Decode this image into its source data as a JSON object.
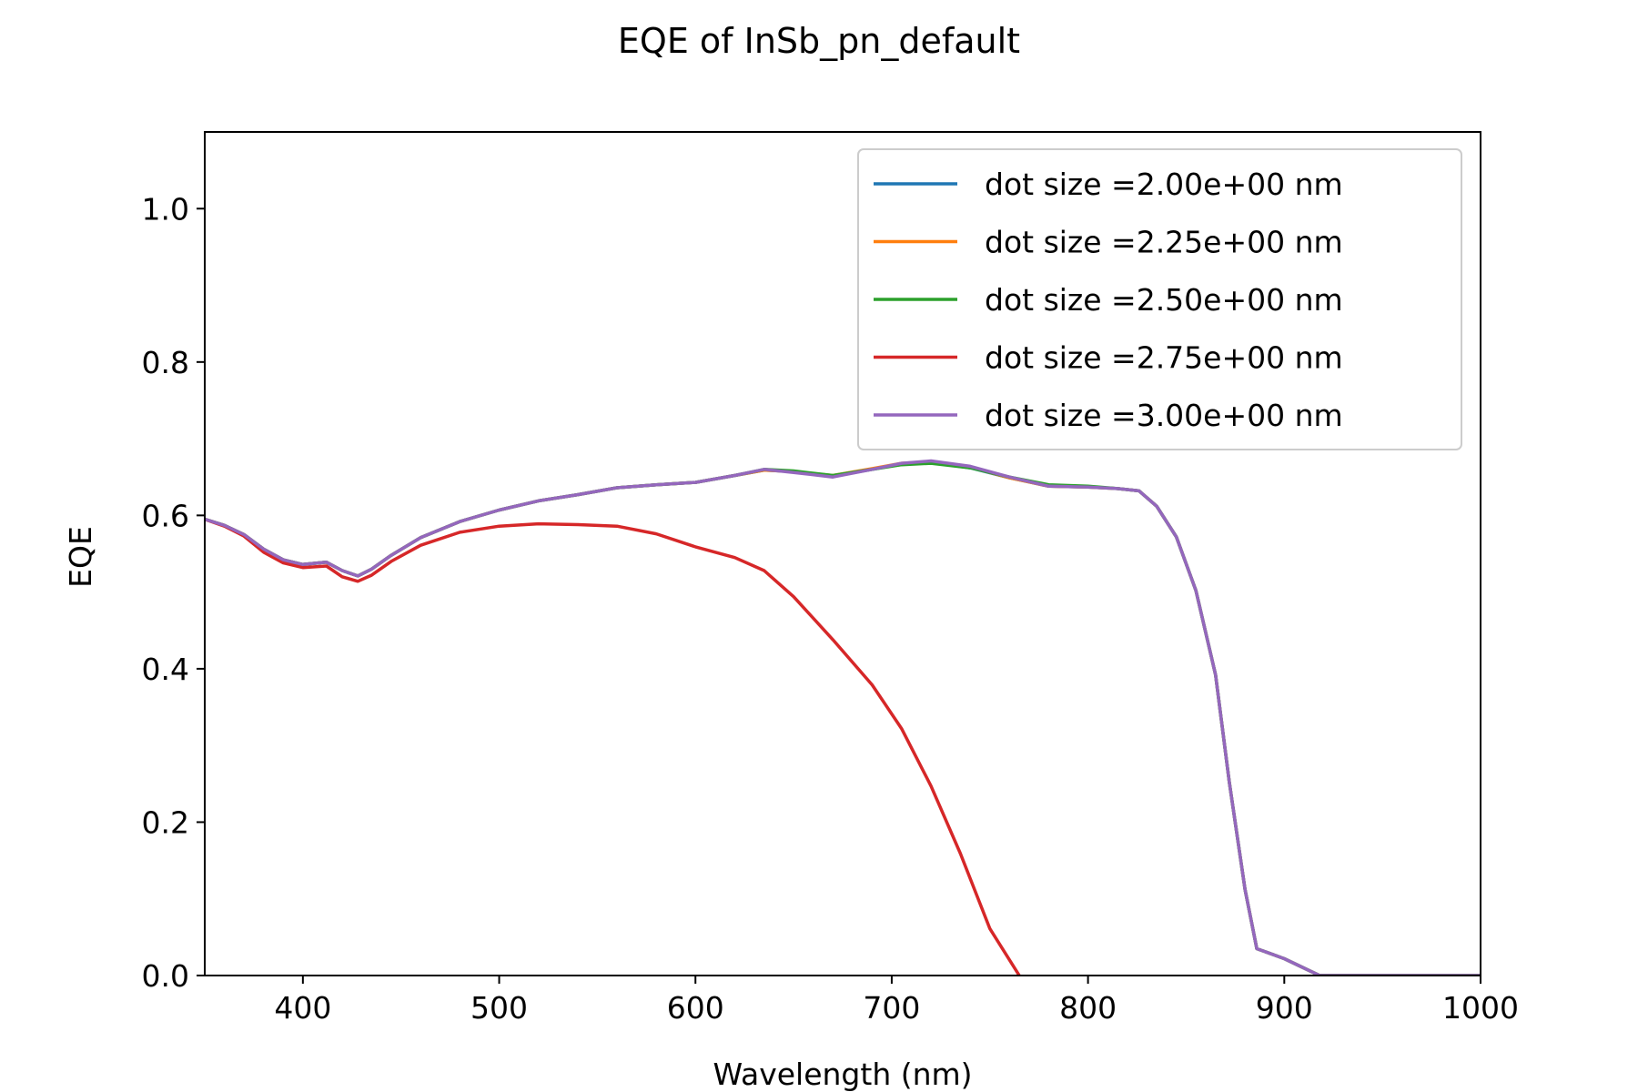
{
  "chart_data": {
    "type": "line",
    "title": "EQE of  InSb_pn_default",
    "xlabel": "Wavelength (nm)",
    "ylabel": "EQE",
    "xlim": [
      350,
      1000
    ],
    "ylim": [
      0,
      1.1
    ],
    "xticks": [
      400,
      500,
      600,
      700,
      800,
      900,
      1000
    ],
    "yticks": [
      0.0,
      0.2,
      0.4,
      0.6,
      0.8,
      1.0
    ],
    "xtick_labels": [
      "400",
      "500",
      "600",
      "700",
      "800",
      "900",
      "1000"
    ],
    "ytick_labels": [
      "0.0",
      "0.2",
      "0.4",
      "0.6",
      "0.8",
      "1.0"
    ],
    "grid": false,
    "legend_position": "top-right",
    "series": [
      {
        "name": "dot size =2.00e+00 nm",
        "color": "#1f77b4",
        "x": [
          350,
          360,
          370,
          380,
          390,
          400,
          412,
          420,
          428,
          435,
          445,
          460,
          480,
          500,
          520,
          540,
          560,
          580,
          600,
          620,
          635,
          650,
          670,
          690,
          705,
          720,
          740,
          760,
          780,
          800,
          815,
          826,
          835,
          845,
          855,
          865,
          872,
          880,
          886,
          900,
          918,
          940,
          960,
          980,
          1000
        ],
        "y": [
          0.595,
          0.587,
          0.575,
          0.556,
          0.542,
          0.536,
          0.539,
          0.528,
          0.521,
          0.53,
          0.548,
          0.571,
          0.592,
          0.607,
          0.619,
          0.627,
          0.636,
          0.64,
          0.643,
          0.652,
          0.659,
          0.657,
          0.651,
          0.66,
          0.667,
          0.669,
          0.662,
          0.649,
          0.638,
          0.637,
          0.635,
          0.632,
          0.612,
          0.572,
          0.502,
          0.392,
          0.252,
          0.112,
          0.035,
          0.022,
          0.0,
          0.0,
          0.0,
          0.0,
          0.0
        ]
      },
      {
        "name": "dot size =2.25e+00 nm",
        "color": "#ff7f0e",
        "x": [
          350,
          360,
          370,
          380,
          390,
          400,
          412,
          420,
          428,
          435,
          445,
          460,
          480,
          500,
          520,
          540,
          560,
          580,
          600,
          620,
          635,
          650,
          670,
          690,
          705,
          720,
          740,
          760,
          780,
          800,
          815,
          826,
          835,
          845,
          855,
          865,
          872,
          880,
          886,
          900,
          918,
          940,
          960,
          980,
          1000
        ],
        "y": [
          0.595,
          0.587,
          0.575,
          0.556,
          0.542,
          0.536,
          0.539,
          0.528,
          0.521,
          0.53,
          0.548,
          0.571,
          0.592,
          0.607,
          0.619,
          0.627,
          0.636,
          0.64,
          0.643,
          0.652,
          0.659,
          0.657,
          0.652,
          0.661,
          0.668,
          0.67,
          0.663,
          0.649,
          0.638,
          0.637,
          0.635,
          0.632,
          0.612,
          0.572,
          0.502,
          0.392,
          0.252,
          0.112,
          0.035,
          0.022,
          0.0,
          0.0,
          0.0,
          0.0,
          0.0
        ]
      },
      {
        "name": "dot size =2.50e+00 nm",
        "color": "#2ca02c",
        "x": [
          350,
          360,
          370,
          380,
          390,
          400,
          412,
          420,
          428,
          435,
          445,
          460,
          480,
          500,
          520,
          540,
          560,
          580,
          600,
          620,
          635,
          650,
          670,
          690,
          705,
          720,
          740,
          760,
          780,
          800,
          815,
          826,
          835,
          845,
          855,
          865,
          872,
          880,
          886,
          900,
          918,
          940,
          960,
          980,
          1000
        ],
        "y": [
          0.595,
          0.587,
          0.575,
          0.556,
          0.542,
          0.536,
          0.539,
          0.528,
          0.521,
          0.53,
          0.548,
          0.571,
          0.592,
          0.607,
          0.619,
          0.627,
          0.636,
          0.64,
          0.643,
          0.652,
          0.66,
          0.658,
          0.652,
          0.66,
          0.666,
          0.668,
          0.662,
          0.65,
          0.64,
          0.638,
          0.635,
          0.632,
          0.612,
          0.572,
          0.502,
          0.392,
          0.252,
          0.112,
          0.035,
          0.022,
          0.0,
          0.0,
          0.0,
          0.0,
          0.0
        ]
      },
      {
        "name": "dot size =2.75e+00 nm",
        "color": "#d62728",
        "x": [
          350,
          360,
          370,
          380,
          390,
          400,
          412,
          420,
          428,
          435,
          445,
          460,
          480,
          500,
          520,
          540,
          560,
          580,
          600,
          620,
          635,
          650,
          670,
          690,
          705,
          720,
          735,
          750,
          765
        ],
        "y": [
          0.595,
          0.586,
          0.573,
          0.552,
          0.538,
          0.532,
          0.534,
          0.52,
          0.514,
          0.522,
          0.54,
          0.561,
          0.578,
          0.586,
          0.589,
          0.588,
          0.586,
          0.576,
          0.559,
          0.545,
          0.528,
          0.494,
          0.438,
          0.379,
          0.322,
          0.247,
          0.159,
          0.061,
          0.0
        ]
      },
      {
        "name": "dot size =3.00e+00 nm",
        "color": "#9467bd",
        "x": [
          350,
          360,
          370,
          380,
          390,
          400,
          412,
          420,
          428,
          435,
          445,
          460,
          480,
          500,
          520,
          540,
          560,
          580,
          600,
          620,
          635,
          650,
          670,
          690,
          705,
          720,
          740,
          760,
          780,
          800,
          815,
          826,
          835,
          845,
          855,
          865,
          872,
          880,
          886,
          900,
          918,
          940,
          960,
          980,
          1000
        ],
        "y": [
          0.595,
          0.587,
          0.575,
          0.556,
          0.542,
          0.536,
          0.539,
          0.528,
          0.521,
          0.53,
          0.548,
          0.571,
          0.592,
          0.607,
          0.619,
          0.627,
          0.636,
          0.64,
          0.643,
          0.652,
          0.66,
          0.656,
          0.65,
          0.66,
          0.668,
          0.671,
          0.664,
          0.65,
          0.638,
          0.637,
          0.635,
          0.632,
          0.612,
          0.572,
          0.502,
          0.392,
          0.252,
          0.112,
          0.035,
          0.022,
          0.0,
          0.0,
          0.0,
          0.0,
          0.0
        ]
      }
    ]
  }
}
